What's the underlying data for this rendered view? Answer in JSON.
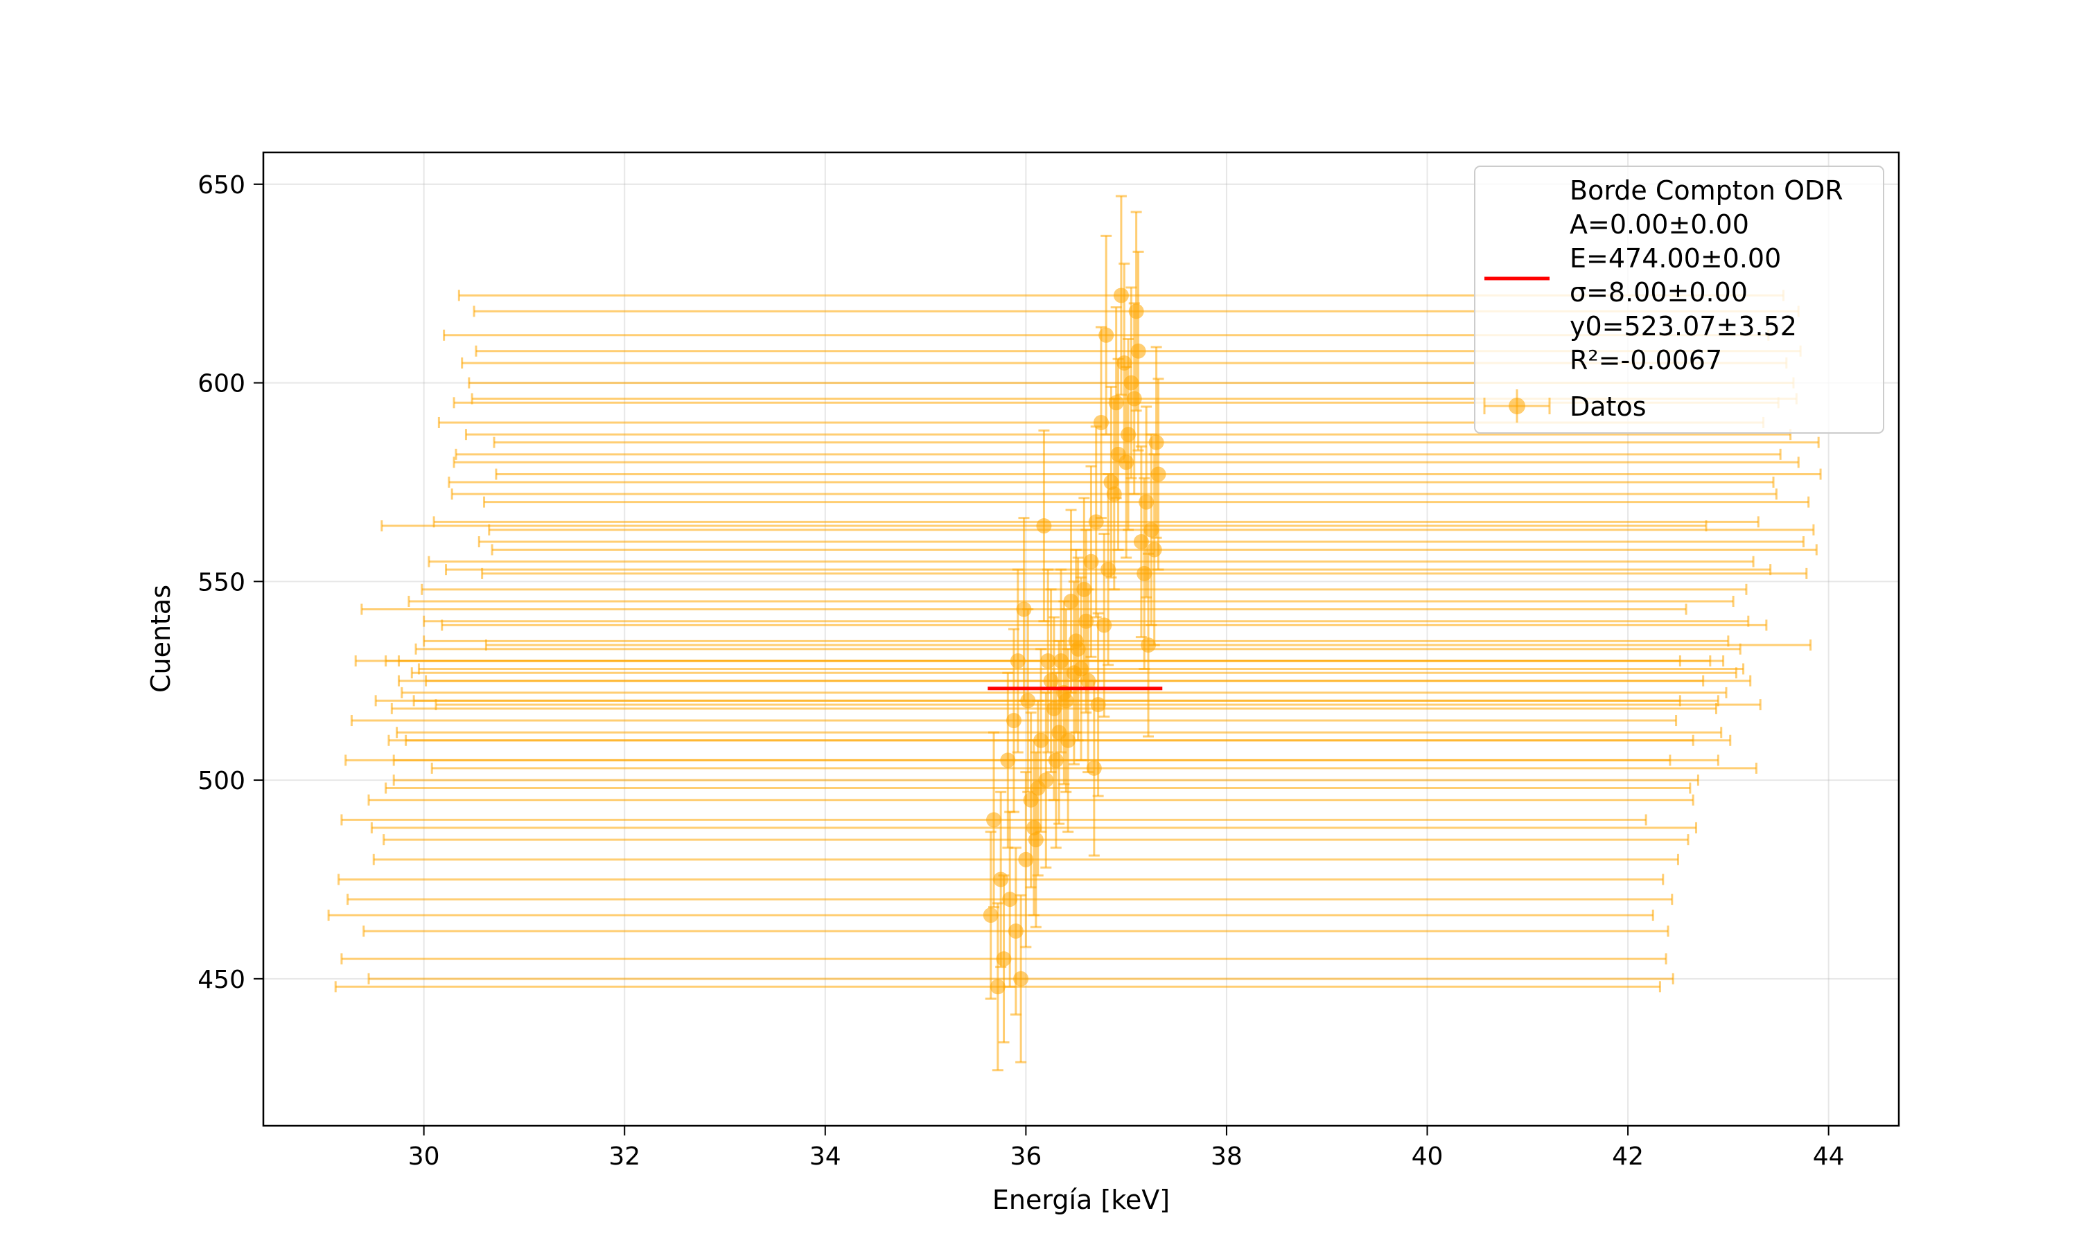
{
  "chart_data": {
    "type": "scatter",
    "title": "",
    "xlabel": "Energía [keV]",
    "ylabel": "Cuentas",
    "xlim": [
      28.4,
      44.7
    ],
    "ylim": [
      413,
      658
    ],
    "xticks": [
      30,
      32,
      34,
      36,
      38,
      40,
      42,
      44
    ],
    "yticks": [
      450,
      500,
      550,
      600,
      650
    ],
    "grid": true,
    "legend_position": "top-right",
    "colors": {
      "data": "#ffa500",
      "fit": "#ff0000"
    },
    "series": [
      {
        "name": "Datos",
        "kind": "errorbar",
        "x": [
          35.65,
          35.72,
          35.78,
          35.84,
          35.9,
          35.95,
          36.0,
          36.05,
          36.1,
          36.15,
          36.2,
          36.25,
          36.3,
          36.35,
          36.4,
          36.45,
          36.5,
          36.55,
          36.6,
          36.65,
          36.7,
          36.75,
          36.8,
          36.85,
          36.9,
          36.95,
          37.0,
          37.05,
          37.1,
          37.15,
          37.2,
          37.25,
          37.3,
          37.32,
          35.68,
          35.75,
          35.82,
          35.88,
          35.92,
          35.98,
          36.02,
          36.08,
          36.12,
          36.18,
          36.22,
          36.28,
          36.33,
          36.38,
          36.42,
          36.48,
          36.52,
          36.58,
          36.62,
          36.68,
          36.72,
          36.78,
          36.82,
          36.88,
          36.92,
          36.98,
          37.02,
          37.08,
          37.12,
          37.18,
          37.22,
          37.28
        ],
        "y": [
          466,
          448,
          455,
          470,
          462,
          450,
          480,
          495,
          485,
          510,
          500,
          525,
          505,
          530,
          520,
          545,
          535,
          528,
          540,
          555,
          565,
          590,
          612,
          575,
          595,
          622,
          580,
          600,
          618,
          560,
          570,
          563,
          585,
          577,
          490,
          475,
          505,
          515,
          530,
          543,
          520,
          488,
          498,
          564,
          530,
          518,
          512,
          522,
          510,
          527,
          533,
          548,
          525,
          503,
          519,
          539,
          553,
          572,
          582,
          605,
          587,
          596,
          608,
          552,
          534,
          558
        ],
        "x_error": [
          6.6,
          6.6,
          6.6,
          6.6,
          6.5,
          6.5,
          6.5,
          6.6,
          6.5,
          6.5,
          6.5,
          6.5,
          6.6,
          6.6,
          6.5,
          6.6,
          6.5,
          6.6,
          6.6,
          6.6,
          6.6,
          6.6,
          6.6,
          6.6,
          6.6,
          6.6,
          6.7,
          6.6,
          6.6,
          6.6,
          6.6,
          6.6,
          6.6,
          6.6,
          6.5,
          6.6,
          6.6,
          6.6,
          6.6,
          6.6,
          6.5,
          6.6,
          6.5,
          6.6,
          6.6,
          6.6,
          6.6,
          6.6,
          6.6,
          6.6,
          6.6,
          6.6,
          6.6,
          6.6,
          6.6,
          6.6,
          6.6,
          6.6,
          6.6,
          6.6,
          6.6,
          6.6,
          6.6,
          6.6,
          6.6,
          6.6
        ],
        "y_error": [
          21,
          21,
          21,
          22,
          21,
          21,
          22,
          22,
          22,
          23,
          22,
          23,
          22,
          23,
          23,
          23,
          23,
          23,
          23,
          24,
          24,
          24,
          25,
          24,
          24,
          25,
          24,
          24,
          25,
          24,
          24,
          24,
          24,
          24,
          22,
          22,
          22,
          23,
          23,
          23,
          23,
          22,
          22,
          24,
          23,
          23,
          23,
          23,
          23,
          23,
          23,
          23,
          23,
          22,
          23,
          23,
          24,
          24,
          24,
          25,
          24,
          24,
          25,
          24,
          23,
          24
        ]
      },
      {
        "name": "Borde Compton ODR",
        "kind": "line",
        "x": [
          35.62,
          37.36
        ],
        "y": [
          523.07,
          523.07
        ]
      }
    ],
    "legend": {
      "fit_lines": [
        "Borde Compton ODR",
        "A=0.00±0.00",
        "E=474.00±0.00",
        "σ=8.00±0.00",
        "y0=523.07±3.52",
        "R²=-0.0067"
      ],
      "data_label": "Datos"
    }
  }
}
